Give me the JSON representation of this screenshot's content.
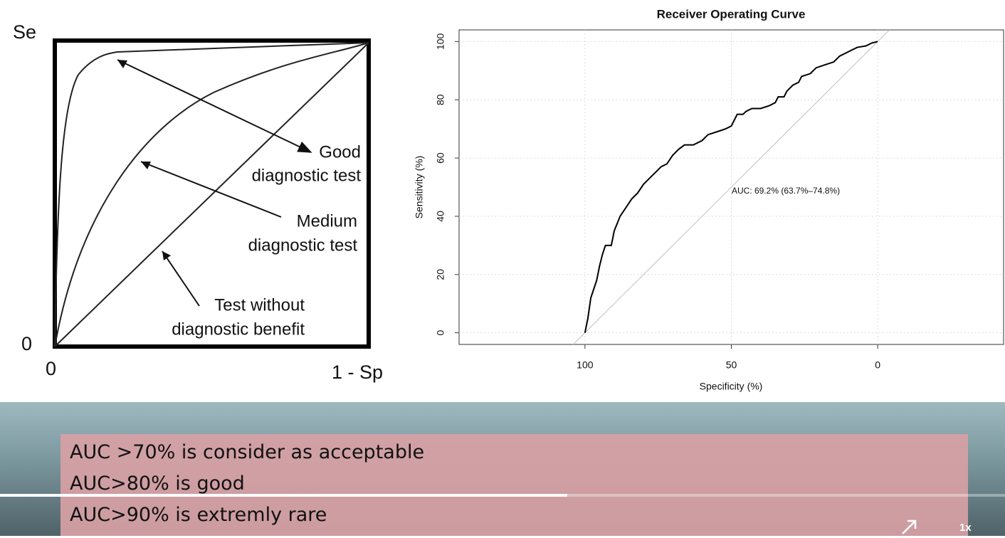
{
  "diagram": {
    "y_axis_label": "Se",
    "y_origin": "0",
    "x_origin": "0",
    "x_axis_label": "1 - Sp",
    "labels": [
      [
        "Good",
        "diagnostic test"
      ],
      [
        "Medium",
        "diagnostic test"
      ],
      [
        "Test without",
        "diagnostic benefit"
      ]
    ]
  },
  "chart_data": {
    "type": "line",
    "title": "Receiver Operating Curve",
    "x_label": "Specificity (%)",
    "y_label": "Sensitivity (%)",
    "x": [
      100,
      99,
      98,
      96,
      95,
      94,
      93,
      91,
      90,
      88,
      86,
      84,
      82,
      80,
      78,
      76,
      74,
      72,
      70,
      68,
      66,
      63,
      60,
      58,
      55,
      52,
      50,
      49,
      48,
      46,
      45,
      43,
      40,
      37,
      35,
      34,
      32,
      31,
      29,
      27,
      26,
      23,
      21,
      18,
      15,
      13,
      11,
      9,
      7,
      4,
      2,
      0
    ],
    "values": [
      0,
      5,
      12,
      18,
      23,
      27,
      30,
      30,
      35,
      40,
      43,
      46,
      48,
      51,
      53,
      55,
      57,
      58,
      61,
      63,
      64.5,
      64.5,
      66,
      68,
      69,
      70,
      71,
      73,
      75,
      75,
      76,
      77,
      77,
      78,
      79,
      81,
      81,
      83,
      85,
      86,
      88,
      89,
      91,
      92,
      93,
      95,
      96,
      97,
      98,
      98.5,
      99.5,
      100
    ],
    "color": "#000000",
    "reference_line_color": "#c0c0c0",
    "xlim": [
      143,
      -43
    ],
    "ylim": [
      -4,
      104
    ],
    "xticks": [
      100,
      50,
      0
    ],
    "yticks": [
      0,
      20,
      40,
      60,
      80,
      100
    ],
    "grid": true,
    "annotation": "AUC: 69.2% (63.7%–74.8%)"
  },
  "caption": {
    "lines": [
      "AUC >70% is consider as acceptable",
      "AUC>80% is good",
      "AUC>90% is extremly rare"
    ]
  },
  "player": {
    "speed": "1x"
  }
}
